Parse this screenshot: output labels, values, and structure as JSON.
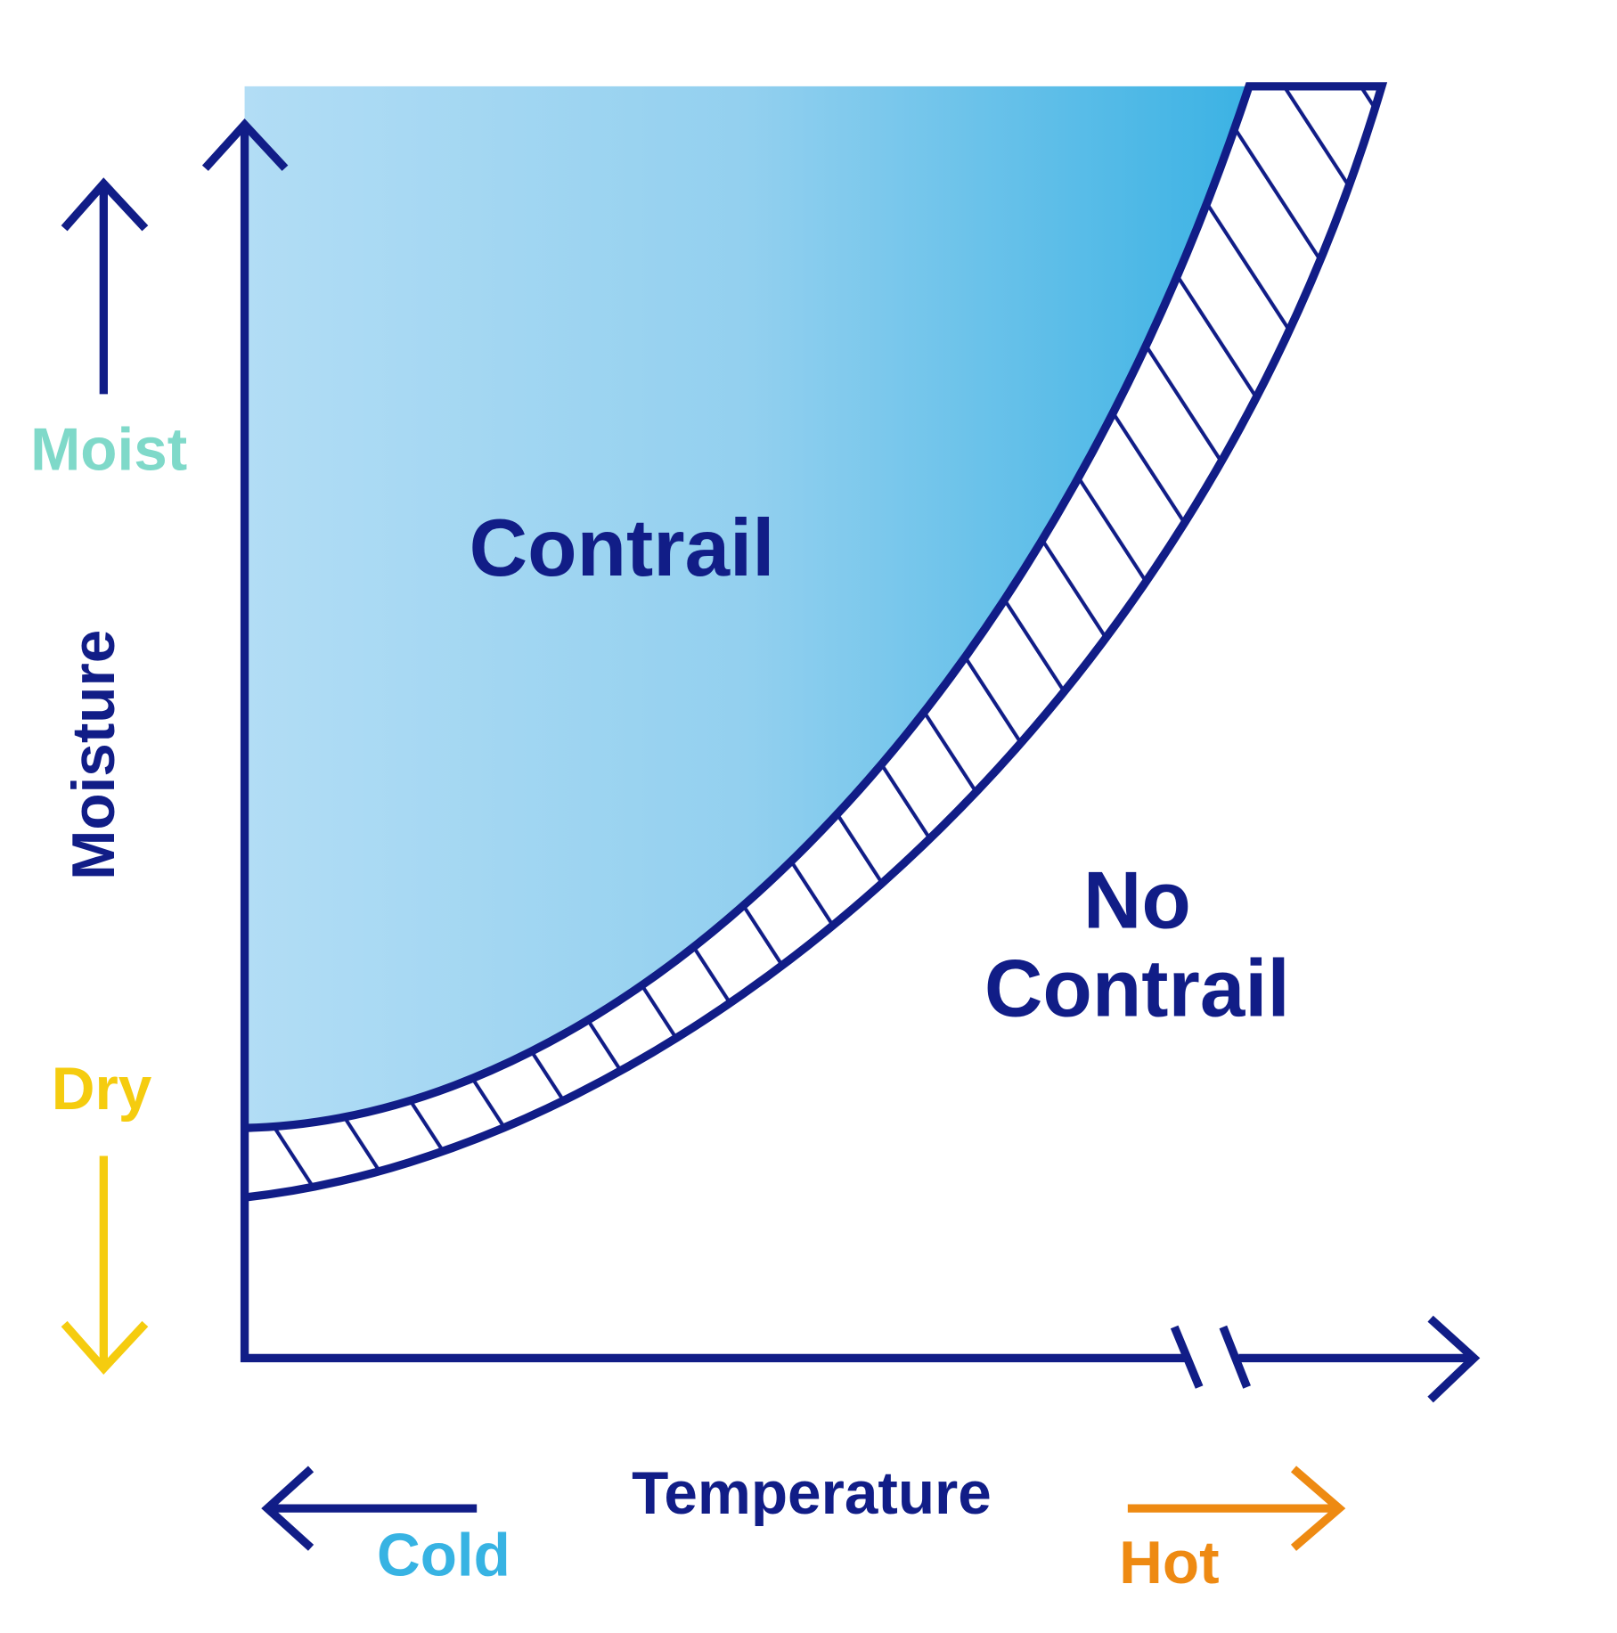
{
  "axes": {
    "y_label": "Moisture",
    "x_label": "Temperature",
    "y_high": "Moist",
    "y_low": "Dry",
    "x_low": "Cold",
    "x_high": "Hot"
  },
  "regions": {
    "contrail": "Contrail",
    "no_contrail": [
      "No",
      "Contrail"
    ]
  }
}
